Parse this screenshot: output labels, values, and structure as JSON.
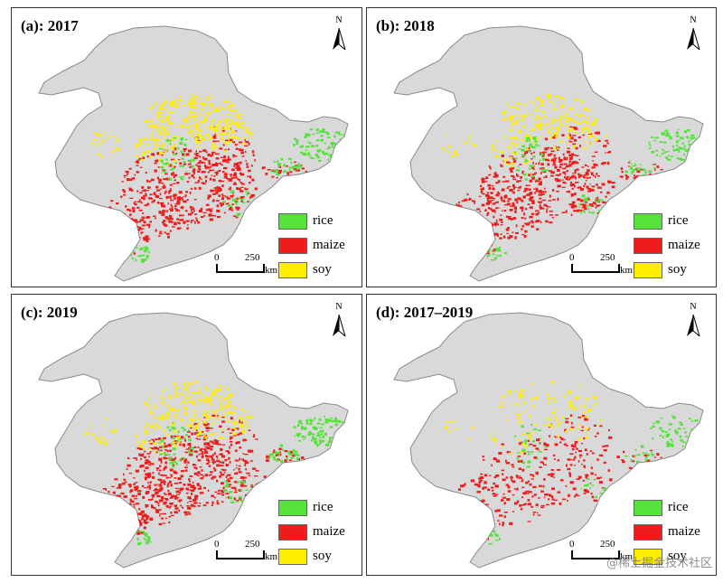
{
  "panels": [
    {
      "id": "a",
      "title": "(a): 2017",
      "density": {
        "rice": 1.0,
        "maize": 1.0,
        "soy": 1.0
      }
    },
    {
      "id": "b",
      "title": "(b): 2018",
      "density": {
        "rice": 0.85,
        "maize": 1.0,
        "soy": 0.7
      }
    },
    {
      "id": "c",
      "title": "(c): 2019",
      "density": {
        "rice": 0.95,
        "maize": 1.1,
        "soy": 0.9
      }
    },
    {
      "id": "d",
      "title": "(d): 2017–2019",
      "density": {
        "rice": 0.6,
        "maize": 0.55,
        "soy": 0.35
      }
    }
  ],
  "north_arrow": {
    "letter": "N"
  },
  "legend": [
    {
      "key": "rice",
      "label": "rice",
      "color": "#55e23a"
    },
    {
      "key": "maize",
      "label": "maize",
      "color": "#ef1c1c"
    },
    {
      "key": "soy",
      "label": "soy",
      "color": "#ffee00"
    }
  ],
  "scale_bar": {
    "start": "0",
    "end": "250",
    "unit": "km"
  },
  "colors": {
    "land": "#d9d9d9",
    "border": "#8a8a8a"
  },
  "watermark": "@稀土掘金技术社区"
}
